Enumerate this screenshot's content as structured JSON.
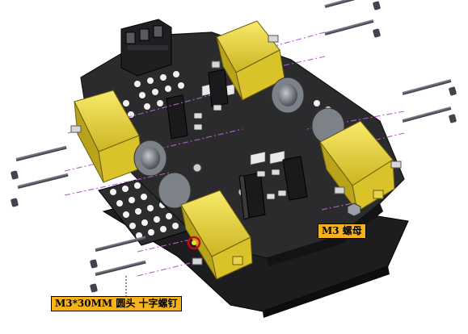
{
  "callouts": {
    "nut": "M3 螺母",
    "screw": "M3*30MM 圆头 十字螺钉"
  },
  "colors": {
    "plate": "#2b2b2d",
    "plate_edge": "#111111",
    "motor_yellow": "#f2dc3a",
    "motor_shade": "#c9b41f",
    "gearbox_gray": "#7d8289",
    "screw_steel": "#4a4f5a",
    "guide_line": "#b060c8",
    "label_bg": "#f7b21b",
    "highlight_ring": "#d0021b"
  },
  "icons": [
    "screw-icon",
    "nut-icon",
    "motor-icon",
    "terminal-block-icon"
  ]
}
